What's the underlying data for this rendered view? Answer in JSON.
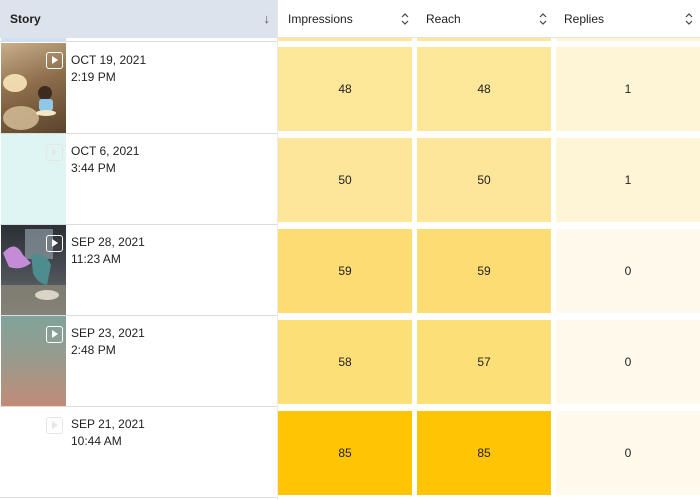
{
  "header": {
    "story_label": "Story",
    "story_sort": "↓",
    "impressions_label": "Impressions",
    "reach_label": "Reach",
    "replies_label": "Replies"
  },
  "rows": [
    {
      "date": "OCT 19, 2021",
      "time": "2:19 PM",
      "impressions": "48",
      "reach": "48",
      "replies": "1"
    },
    {
      "date": "OCT 6, 2021",
      "time": "3:44 PM",
      "impressions": "50",
      "reach": "50",
      "replies": "1"
    },
    {
      "date": "SEP 28, 2021",
      "time": "11:23 AM",
      "impressions": "59",
      "reach": "59",
      "replies": "0"
    },
    {
      "date": "SEP 23, 2021",
      "time": "2:48 PM",
      "impressions": "58",
      "reach": "57",
      "replies": "0"
    },
    {
      "date": "SEP 21, 2021",
      "time": "10:44 AM",
      "impressions": "85",
      "reach": "85",
      "replies": "0"
    }
  ],
  "colors": {
    "header_story_bg": "#dde3ec",
    "heat_48": "#fde89a",
    "heat_50": "#fde699",
    "heat_57": "#fddf78",
    "heat_58": "#fddf78",
    "heat_59": "#fddd73",
    "heat_85": "#ffc403",
    "replies_1": "#fef5d6",
    "replies_0": "#fffaec"
  }
}
